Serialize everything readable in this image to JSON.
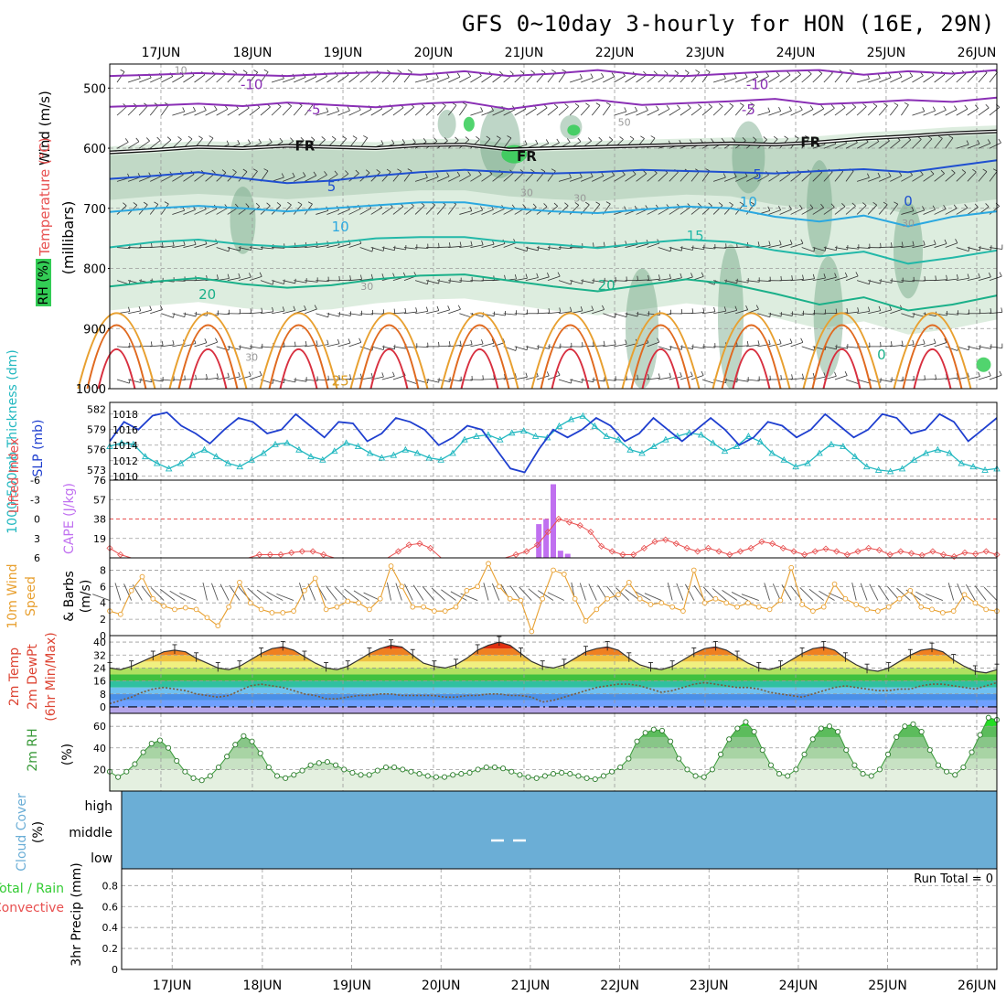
{
  "title": "GFS 0~10day 3-hourly for HON (16E, 29N)",
  "days": [
    "17JUN",
    "18JUN",
    "19JUN",
    "20JUN",
    "21JUN",
    "22JUN",
    "23JUN",
    "24JUN",
    "25JUN",
    "26JUN"
  ],
  "colors": {
    "rh_dark": "#6fa383",
    "rh_mid": "#a9c9b0",
    "rh_light": "#d9ebdc",
    "rh_green": "#33cc55",
    "slp": "#1f3fcf",
    "thickness": "#22b8c0",
    "lifted": "#e85050",
    "cape": "#c070f0",
    "wind10": "#e8a030",
    "barb": "#555555",
    "temp": "#dd4433",
    "rh2m": "#3a9a3a",
    "cloud": "#6baed6"
  },
  "profile": {
    "y_title_wind": "Wind (m/s)",
    "y_title_temp": "Temperature (°C)",
    "y_title_rh": "RH (%)",
    "y_title_mb": "(millibars)",
    "levels": [
      500,
      600,
      700,
      800,
      900,
      1000
    ],
    "isotherms": [
      {
        "label": "-10",
        "color": "#8a2fb5",
        "p": [
          480,
          478,
          475,
          478,
          480,
          476,
          474,
          478,
          472,
          480,
          476,
          470,
          478,
          480,
          476,
          472,
          470,
          478,
          472,
          476,
          470
        ]
      },
      {
        "label": "-5",
        "color": "#8a2fb5",
        "p": [
          531,
          529,
          526,
          530,
          524,
          528,
          532,
          526,
          523,
          535,
          525,
          520,
          528,
          525,
          522,
          518,
          527,
          524,
          520,
          523,
          516
        ]
      },
      {
        "label": "FR",
        "color": "#111111",
        "p": [
          607,
          603,
          598,
          600,
          596,
          598,
          600,
          595,
          594,
          602,
          600,
          598,
          596,
          594,
          592,
          594,
          590,
          584,
          580,
          575,
          572
        ]
      },
      {
        "label": "5",
        "color": "#1f4fd0",
        "p": [
          651,
          646,
          640,
          650,
          658,
          654,
          646,
          640,
          636,
          640,
          642,
          640,
          636,
          638,
          640,
          642,
          638,
          635,
          640,
          630,
          620
        ]
      },
      {
        "label": "10",
        "color": "#2aa8e0",
        "p": [
          706,
          700,
          696,
          700,
          705,
          700,
          695,
          690,
          690,
          700,
          705,
          708,
          702,
          697,
          700,
          714,
          722,
          712,
          730,
          714,
          705
        ]
      },
      {
        "label": "15",
        "color": "#22b8a8",
        "p": [
          765,
          756,
          752,
          760,
          764,
          758,
          750,
          748,
          748,
          756,
          760,
          766,
          758,
          752,
          756,
          770,
          780,
          772,
          792,
          782,
          770
        ]
      },
      {
        "label": "20",
        "color": "#1ab089",
        "p": [
          830,
          822,
          816,
          826,
          832,
          828,
          818,
          812,
          810,
          820,
          830,
          838,
          828,
          818,
          826,
          842,
          860,
          848,
          870,
          860,
          845
        ]
      }
    ],
    "labels": [
      {
        "text": "-10",
        "x": 0.16,
        "p": 494,
        "color": "#8a2fb5"
      },
      {
        "text": "-10",
        "x": 0.73,
        "p": 494,
        "color": "#8a2fb5"
      },
      {
        "text": "-5",
        "x": 0.23,
        "p": 536,
        "color": "#8a2fb5"
      },
      {
        "text": "-5",
        "x": 0.72,
        "p": 536,
        "color": "#8a2fb5"
      },
      {
        "text": "FR",
        "x": 0.22,
        "p": 596,
        "color": "#111111"
      },
      {
        "text": "FR",
        "x": 0.47,
        "p": 614,
        "color": "#111111"
      },
      {
        "text": "FR",
        "x": 0.79,
        "p": 590,
        "color": "#111111"
      },
      {
        "text": "5",
        "x": 0.25,
        "p": 664,
        "color": "#1f4fd0"
      },
      {
        "text": "5",
        "x": 0.73,
        "p": 644,
        "color": "#1f4fd0"
      },
      {
        "text": "10",
        "x": 0.26,
        "p": 731,
        "color": "#2aa8e0"
      },
      {
        "text": "10",
        "x": 0.72,
        "p": 690,
        "color": "#2aa8e0"
      },
      {
        "text": "0",
        "x": 0.9,
        "p": 688,
        "color": "#1f4fd0"
      },
      {
        "text": "15",
        "x": 0.66,
        "p": 746,
        "color": "#22b8a8"
      },
      {
        "text": "20",
        "x": 0.11,
        "p": 843,
        "color": "#1ab089"
      },
      {
        "text": "20",
        "x": 0.56,
        "p": 828,
        "color": "#1ab089"
      },
      {
        "text": "25",
        "x": 0.26,
        "p": 987,
        "color": "#d99a20"
      },
      {
        "text": "0",
        "x": 0.87,
        "p": 944,
        "color": "#1ab089"
      },
      {
        "text": "30",
        "x": 0.47,
        "p": 672,
        "color": "#999999"
      },
      {
        "text": "30",
        "x": 0.53,
        "p": 681,
        "color": "#999999"
      },
      {
        "text": "30",
        "x": 0.29,
        "p": 828,
        "color": "#999999"
      },
      {
        "text": "30",
        "x": 0.16,
        "p": 946,
        "color": "#999999"
      },
      {
        "text": "30",
        "x": 0.9,
        "p": 723,
        "color": "#999999"
      },
      {
        "text": "50",
        "x": 0.58,
        "p": 555,
        "color": "#999999"
      },
      {
        "text": "10",
        "x": 0.08,
        "p": 468,
        "color": "#999999"
      }
    ]
  },
  "slp_panel": {
    "y_title_thick": "1000-500mb Thickness (dm)",
    "y_title_slp": "SLP (mb)",
    "thick_ticks": [
      "582",
      "579",
      "576",
      "573"
    ],
    "slp_ticks": [
      "1018",
      "1016",
      "1014",
      "1012",
      "1010"
    ],
    "slp": [
      1014.5,
      1017,
      1016,
      1017.8,
      1018.2,
      1016.5,
      1015.5,
      1014.2,
      1016,
      1017.5,
      1017,
      1015.5,
      1016,
      1018,
      1016.5,
      1015,
      1017,
      1016.8,
      1014.5,
      1015.5,
      1017.5,
      1017,
      1016,
      1014,
      1015,
      1016.5,
      1016,
      1013.5,
      1011,
      1010.5,
      1013.5,
      1016,
      1015,
      1016,
      1017.5,
      1016.5,
      1014.5,
      1015.5,
      1017.5,
      1016,
      1014.5,
      1016,
      1017.5,
      1016,
      1014,
      1015,
      1017,
      1016.5,
      1015,
      1016,
      1018,
      1016.5,
      1015,
      1016,
      1018,
      1017.5,
      1015.5,
      1016,
      1018,
      1017,
      1014.5,
      1016,
      1017.5
    ],
    "thickness": [
      576.5,
      577,
      576.8,
      575,
      574,
      573.2,
      574,
      575.2,
      576,
      575,
      574,
      573.5,
      574.5,
      575.5,
      576.8,
      577,
      576,
      575,
      574.5,
      575.8,
      577,
      576.5,
      575.5,
      574.8,
      575.2,
      576,
      575.5,
      574.8,
      574.5,
      575.5,
      577.5,
      578,
      578.2,
      577.5,
      578.5,
      578.8,
      578,
      577.8,
      579.5,
      580.5,
      581,
      579.5,
      578,
      577.5,
      576,
      575.5,
      576.5,
      577.5,
      578,
      578.5,
      578.2,
      577,
      575.8,
      576.5,
      578,
      577.2,
      575.5,
      574.5,
      573.5,
      574,
      575.5,
      576.8,
      576.5,
      575,
      573.5,
      573,
      572.8,
      573.2,
      574.5,
      575.5,
      576,
      575.5,
      574,
      573.5,
      573,
      573.2
    ]
  },
  "cape_panel": {
    "y_title_li": "Lifted Index",
    "y_title_cape": "CAPE (J/kg)",
    "li_ticks": [
      "-6",
      "-3",
      "0",
      "3",
      "6"
    ],
    "cape_ticks": [
      "76",
      "57",
      "38",
      "19"
    ],
    "cape": [
      {
        "x": 0.4837,
        "v": 33
      },
      {
        "x": 0.4919,
        "v": 38
      },
      {
        "x": 0.5,
        "v": 72
      },
      {
        "x": 0.5081,
        "v": 7
      },
      {
        "x": 0.5162,
        "v": 4
      }
    ],
    "lifted": [
      4.5,
      5.5,
      6,
      6,
      6,
      6,
      6,
      6,
      6,
      6,
      6,
      6,
      6,
      6,
      5.5,
      5.5,
      5.5,
      5.2,
      5,
      5,
      5.5,
      6,
      6,
      6,
      6,
      6,
      6,
      5,
      4,
      3.8,
      4.5,
      6,
      6,
      6,
      6,
      6,
      6,
      6,
      5.5,
      5,
      4,
      2,
      0,
      0.5,
      1,
      2,
      4.2,
      5,
      5.5,
      5.5,
      4.5,
      3.5,
      3.2,
      3.8,
      4.5,
      5,
      4.5,
      5,
      5.5,
      5,
      4.5,
      3.5,
      3.8,
      4.5,
      5,
      5.5,
      5,
      4.6,
      5,
      5.5,
      5,
      4.5,
      4.8,
      5.5,
      5,
      5.3,
      5.6,
      5,
      5.5,
      5.8,
      5.2,
      5.4,
      5,
      5.5
    ]
  },
  "wind_panel": {
    "y_title_1": "10m Wind",
    "y_title_2": "Speed",
    "y_title_3": "& Barbs",
    "y_title_4": "(m/s)",
    "ticks": [
      "8",
      "6",
      "4",
      "2",
      "0"
    ],
    "speed": [
      3,
      2.6,
      5.5,
      7.2,
      4.5,
      3.6,
      3.2,
      3.4,
      3.2,
      2.2,
      1.2,
      3.5,
      6.5,
      4,
      3.2,
      2.8,
      2.8,
      3,
      5.5,
      7,
      3.2,
      3.5,
      4.2,
      4,
      3.2,
      4.5,
      8.5,
      6,
      3.5,
      3.5,
      3,
      3,
      3.5,
      5.5,
      6,
      8.8,
      6,
      4.5,
      4.3,
      0.5,
      4.5,
      8,
      7.5,
      4.5,
      1.8,
      3.2,
      4.5,
      5,
      6.5,
      4.5,
      3.8,
      4,
      3.5,
      3,
      8,
      4,
      4.5,
      4,
      3.5,
      4,
      3.5,
      3.2,
      4.3,
      8.3,
      3.8,
      3,
      3.5,
      6.3,
      4.5,
      3.8,
      3.2,
      3,
      3.5,
      4.5,
      5.5,
      3.5,
      3.2,
      2.8,
      3,
      5,
      4,
      3.2,
      3
    ]
  },
  "temp_panel": {
    "y_title_1": "2m Temp",
    "y_title_2": "2m DewPt",
    "y_title_3": "(6hr Min/Max)",
    "ticks": [
      "40",
      "32",
      "24",
      "16",
      "8",
      "0"
    ],
    "temp": [
      24,
      23,
      25,
      28,
      31,
      34,
      35,
      34,
      30,
      27,
      24,
      23,
      25,
      29,
      33,
      36,
      37,
      35,
      31,
      27,
      24,
      23,
      25,
      29,
      33,
      36,
      38,
      37,
      32,
      27,
      25,
      24,
      26,
      30,
      35,
      38,
      40,
      38,
      33,
      28,
      25,
      24,
      26,
      30,
      34,
      36,
      37,
      35,
      30,
      26,
      24,
      23,
      25,
      29,
      33,
      36,
      37,
      35,
      31,
      27,
      24,
      23,
      25,
      29,
      33,
      36,
      37,
      35,
      30,
      26,
      23,
      22,
      24,
      28,
      32,
      35,
      36,
      34,
      29,
      25,
      22,
      21,
      23
    ],
    "dewpt": [
      2,
      4,
      6,
      9,
      11,
      12,
      11,
      10,
      8,
      7,
      6,
      7,
      10,
      13,
      14,
      13,
      12,
      10,
      8,
      7,
      5,
      5,
      6,
      7,
      7,
      8,
      8,
      7,
      7,
      7,
      7,
      6,
      6,
      7,
      7,
      8,
      8,
      7,
      7,
      6,
      3,
      4,
      6,
      8,
      10,
      12,
      13,
      14,
      14,
      13,
      11,
      9,
      10,
      12,
      14,
      15,
      14,
      13,
      12,
      12,
      11,
      9,
      8,
      7,
      6,
      8,
      10,
      12,
      13,
      12,
      11,
      10,
      10,
      11,
      11,
      13,
      14,
      14,
      13,
      12,
      11,
      13,
      15
    ]
  },
  "rh_panel": {
    "y_title": "2m RH",
    "y_title_2": "(%)",
    "ticks": [
      "60",
      "40",
      "20"
    ],
    "rh": [
      18,
      13,
      18,
      25,
      36,
      44,
      47,
      40,
      28,
      18,
      12,
      10,
      14,
      22,
      32,
      43,
      51,
      46,
      35,
      22,
      14,
      12,
      15,
      19,
      24,
      26,
      27,
      24,
      20,
      17,
      15,
      15,
      19,
      22,
      22,
      20,
      18,
      16,
      14,
      13,
      13,
      15,
      16,
      17,
      20,
      22,
      22,
      21,
      18,
      15,
      13,
      12,
      14,
      16,
      17,
      16,
      14,
      12,
      11,
      14,
      18,
      22,
      30,
      46,
      54,
      57,
      56,
      46,
      30,
      20,
      14,
      13,
      20,
      34,
      48,
      58,
      64,
      55,
      38,
      24,
      16,
      14,
      20,
      34,
      48,
      58,
      60,
      55,
      38,
      24,
      16,
      14,
      20,
      34,
      50,
      60,
      62,
      55,
      38,
      24,
      18,
      15,
      22,
      36,
      52,
      68,
      66
    ]
  },
  "cloud_panel": {
    "y_title": "Cloud Cover",
    "y_title_2": "(%)",
    "levels": [
      "high",
      "middle",
      "low"
    ]
  },
  "precip_panel": {
    "y_title_1": "3hr Precip (mm)",
    "legend_1": "Total / Rain",
    "legend_2": "Convective",
    "ticks": [
      "0.8",
      "0.6",
      "0.4",
      "0.2",
      "0"
    ],
    "run_total": "Run Total = 0"
  }
}
